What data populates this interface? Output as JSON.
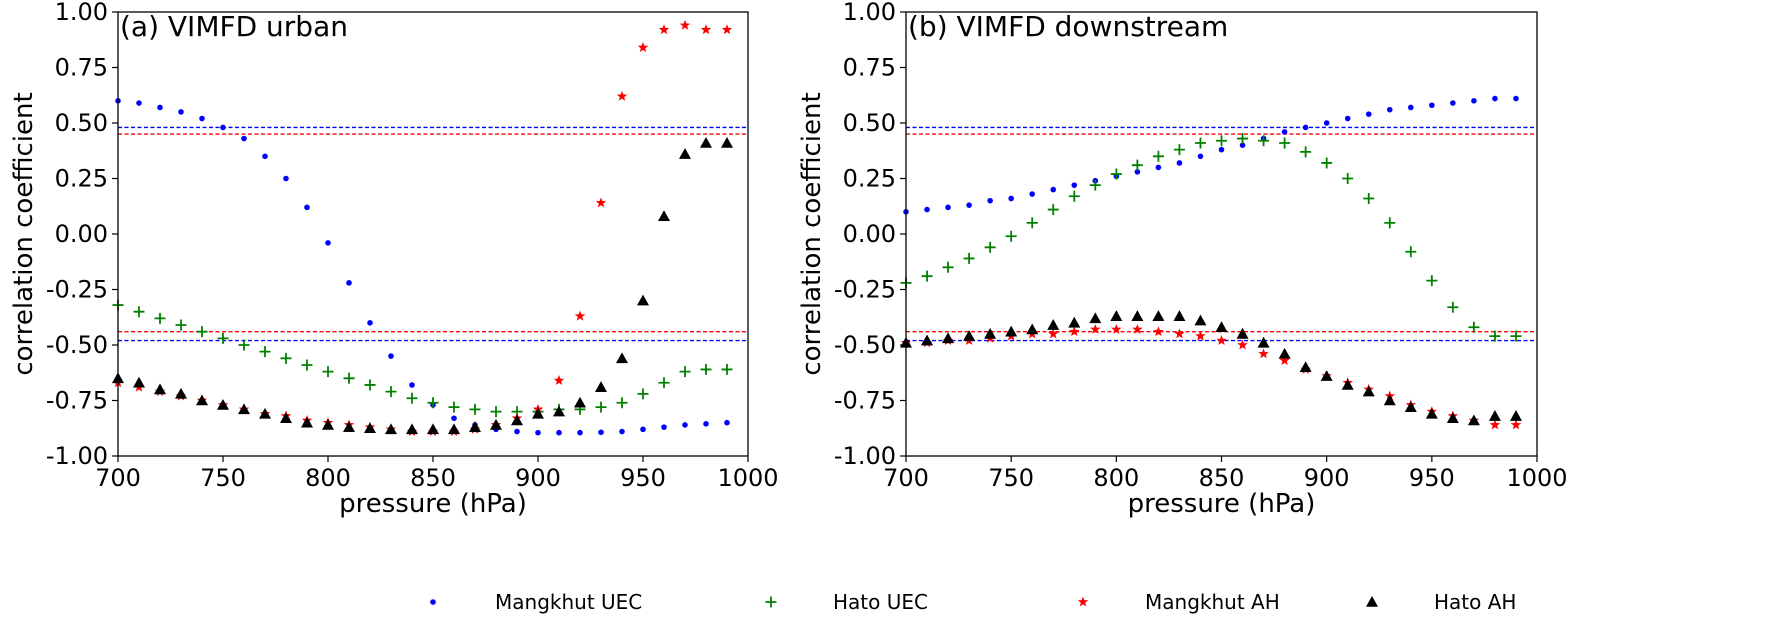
{
  "chart_data": [
    {
      "type": "scatter",
      "title": "(a) VIMFD urban",
      "xlabel": "pressure (hPa)",
      "ylabel": "correlation coefficient",
      "xlim": [
        700,
        1000
      ],
      "ylim": [
        -1.0,
        1.0
      ],
      "xticks": [
        "700",
        "750",
        "800",
        "850",
        "900",
        "950",
        "1000"
      ],
      "yticks": [
        "1.00",
        "0.75",
        "0.50",
        "0.25",
        "0.00",
        "-0.25",
        "-0.50",
        "-0.75",
        "-1.00"
      ],
      "x": [
        700,
        710,
        720,
        730,
        740,
        750,
        760,
        770,
        780,
        790,
        800,
        810,
        820,
        830,
        840,
        850,
        860,
        870,
        880,
        890,
        900,
        910,
        920,
        930,
        940,
        950,
        960,
        970,
        980,
        990
      ],
      "hlines": [
        {
          "y": 0.48,
          "color": "#0000ff"
        },
        {
          "y": 0.45,
          "color": "#ff0000"
        },
        {
          "y": -0.44,
          "color": "#ff0000"
        },
        {
          "y": -0.48,
          "color": "#0000ff"
        }
      ],
      "series": [
        {
          "name": "Mangkhut UEC",
          "marker": "dot",
          "color": "#0000ff",
          "values": [
            0.6,
            0.59,
            0.57,
            0.55,
            0.52,
            0.48,
            0.43,
            0.35,
            0.25,
            0.12,
            -0.04,
            -0.22,
            -0.4,
            -0.55,
            -0.68,
            -0.77,
            -0.83,
            -0.86,
            -0.88,
            -0.89,
            -0.895,
            -0.895,
            -0.895,
            -0.893,
            -0.89,
            -0.88,
            -0.87,
            -0.86,
            -0.855,
            -0.85
          ]
        },
        {
          "name": "Hato UEC",
          "marker": "plus",
          "color": "#008000",
          "values": [
            -0.32,
            -0.35,
            -0.38,
            -0.41,
            -0.44,
            -0.47,
            -0.5,
            -0.53,
            -0.56,
            -0.59,
            -0.62,
            -0.65,
            -0.68,
            -0.71,
            -0.74,
            -0.76,
            -0.78,
            -0.79,
            -0.8,
            -0.8,
            -0.8,
            -0.79,
            -0.79,
            -0.78,
            -0.76,
            -0.72,
            -0.67,
            -0.62,
            -0.61,
            -0.61
          ]
        },
        {
          "name": "Mangkhut AH",
          "marker": "star",
          "color": "#ff0000",
          "values": [
            -0.67,
            -0.69,
            -0.71,
            -0.73,
            -0.75,
            -0.77,
            -0.79,
            -0.81,
            -0.82,
            -0.84,
            -0.85,
            -0.86,
            -0.87,
            -0.88,
            -0.89,
            -0.89,
            -0.89,
            -0.88,
            -0.86,
            -0.83,
            -0.79,
            -0.66,
            -0.37,
            0.14,
            0.62,
            0.84,
            0.92,
            0.94,
            0.92,
            0.92
          ]
        },
        {
          "name": "Hato AH",
          "marker": "triangle",
          "color": "#000000",
          "values": [
            -0.65,
            -0.67,
            -0.7,
            -0.72,
            -0.75,
            -0.77,
            -0.79,
            -0.81,
            -0.83,
            -0.85,
            -0.86,
            -0.87,
            -0.875,
            -0.88,
            -0.88,
            -0.88,
            -0.88,
            -0.87,
            -0.86,
            -0.84,
            -0.81,
            -0.8,
            -0.76,
            -0.69,
            -0.56,
            -0.3,
            0.08,
            0.36,
            0.41,
            0.41
          ]
        }
      ]
    },
    {
      "type": "scatter",
      "title": "(b) VIMFD downstream",
      "xlabel": "pressure (hPa)",
      "ylabel": "correlation coefficient",
      "xlim": [
        700,
        1000
      ],
      "ylim": [
        -1.0,
        1.0
      ],
      "xticks": [
        "700",
        "750",
        "800",
        "850",
        "900",
        "950",
        "1000"
      ],
      "yticks": [
        "1.00",
        "0.75",
        "0.50",
        "0.25",
        "0.00",
        "-0.25",
        "-0.50",
        "-0.75",
        "-1.00"
      ],
      "x": [
        700,
        710,
        720,
        730,
        740,
        750,
        760,
        770,
        780,
        790,
        800,
        810,
        820,
        830,
        840,
        850,
        860,
        870,
        880,
        890,
        900,
        910,
        920,
        930,
        940,
        950,
        960,
        970,
        980,
        990
      ],
      "hlines": [
        {
          "y": 0.48,
          "color": "#0000ff"
        },
        {
          "y": 0.45,
          "color": "#ff0000"
        },
        {
          "y": -0.44,
          "color": "#ff0000"
        },
        {
          "y": -0.48,
          "color": "#0000ff"
        }
      ],
      "series": [
        {
          "name": "Mangkhut UEC",
          "marker": "dot",
          "color": "#0000ff",
          "values": [
            0.1,
            0.11,
            0.12,
            0.13,
            0.15,
            0.16,
            0.18,
            0.2,
            0.22,
            0.24,
            0.26,
            0.28,
            0.3,
            0.32,
            0.35,
            0.38,
            0.4,
            0.43,
            0.46,
            0.48,
            0.5,
            0.52,
            0.54,
            0.56,
            0.57,
            0.58,
            0.59,
            0.6,
            0.61,
            0.61
          ]
        },
        {
          "name": "Hato UEC",
          "marker": "plus",
          "color": "#008000",
          "values": [
            -0.22,
            -0.19,
            -0.15,
            -0.11,
            -0.06,
            -0.01,
            0.05,
            0.11,
            0.17,
            0.22,
            0.27,
            0.31,
            0.35,
            0.38,
            0.41,
            0.42,
            0.43,
            0.42,
            0.41,
            0.37,
            0.32,
            0.25,
            0.16,
            0.05,
            -0.08,
            -0.21,
            -0.33,
            -0.42,
            -0.46,
            -0.46
          ]
        },
        {
          "name": "Mangkhut AH",
          "marker": "star",
          "color": "#ff0000",
          "values": [
            -0.49,
            -0.49,
            -0.48,
            -0.48,
            -0.47,
            -0.46,
            -0.45,
            -0.45,
            -0.44,
            -0.43,
            -0.43,
            -0.43,
            -0.44,
            -0.45,
            -0.46,
            -0.48,
            -0.5,
            -0.54,
            -0.57,
            -0.61,
            -0.64,
            -0.67,
            -0.7,
            -0.73,
            -0.77,
            -0.8,
            -0.82,
            -0.84,
            -0.86,
            -0.86
          ]
        },
        {
          "name": "Hato AH",
          "marker": "triangle",
          "color": "#000000",
          "values": [
            -0.49,
            -0.48,
            -0.47,
            -0.46,
            -0.45,
            -0.44,
            -0.43,
            -0.41,
            -0.4,
            -0.38,
            -0.37,
            -0.37,
            -0.37,
            -0.37,
            -0.39,
            -0.42,
            -0.45,
            -0.49,
            -0.54,
            -0.6,
            -0.64,
            -0.68,
            -0.71,
            -0.75,
            -0.78,
            -0.81,
            -0.83,
            -0.84,
            -0.82,
            -0.82
          ]
        }
      ]
    }
  ],
  "legend": {
    "placement": "bottom",
    "entries": [
      {
        "label": "Mangkhut UEC",
        "marker": "dot",
        "color": "#0000ff"
      },
      {
        "label": "Hato UEC",
        "marker": "plus",
        "color": "#008000"
      },
      {
        "label": "Mangkhut AH",
        "marker": "star",
        "color": "#ff0000"
      },
      {
        "label": "Hato AH",
        "marker": "triangle",
        "color": "#000000"
      }
    ]
  }
}
